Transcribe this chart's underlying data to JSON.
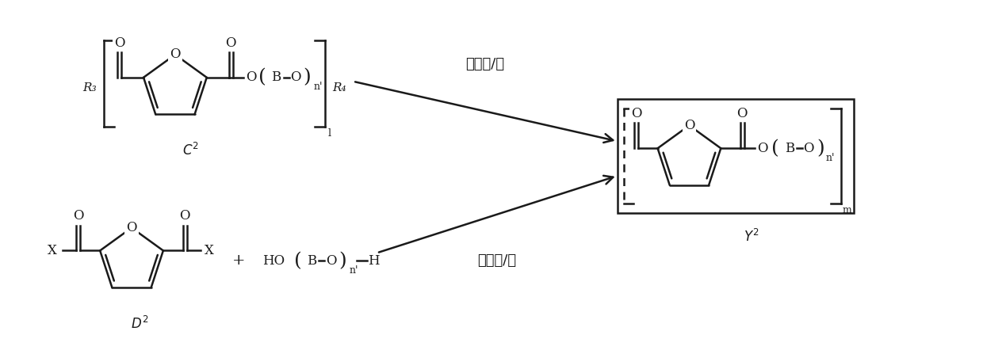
{
  "bg_color": "#ffffff",
  "line_color": "#1a1a1a",
  "line_width": 1.8,
  "text_color": "#1a1a1a",
  "catalyst_label_1": "催化剂/碱",
  "catalyst_label_2": "催化剂/碱",
  "label_C2": "$\\\\itC$$^2$",
  "label_D2": "$\\\\itD$$^2$",
  "label_Y2": "$\\\\itY$$^2$",
  "fig_width": 12.4,
  "fig_height": 4.47,
  "dpi": 100
}
